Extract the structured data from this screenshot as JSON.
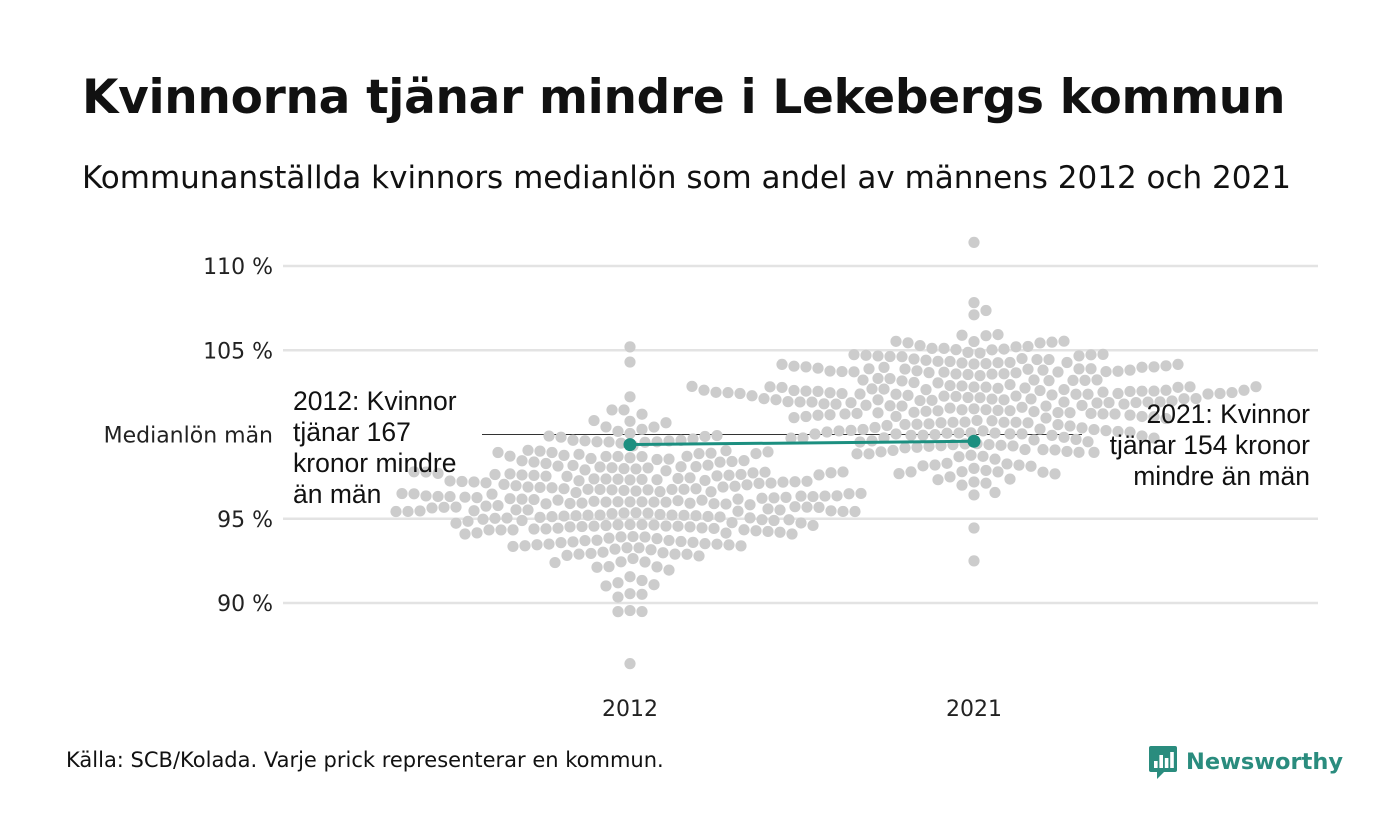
{
  "header": {
    "title": "Kvinnorna tjänar mindre i Lekebergs kommun",
    "subtitle": "Kommunanställda kvinnors medianlön som andel av männens 2012 och 2021"
  },
  "footer": {
    "source": "Källa: SCB/Kolada. Varje prick representerar en kommun.",
    "brand": "Newsworthy",
    "brand_icon": "bar-chart-logo-icon"
  },
  "colors": {
    "dots": "#cccccc",
    "highlight": "#1c8f80",
    "gridline": "#e3e3e3",
    "reference_line": "#333333"
  },
  "chart_data": {
    "type": "scatter",
    "subtype": "beeswarm",
    "title": "Kvinnorna tjänar mindre i Lekebergs kommun",
    "subtitle": "Kommunanställda kvinnors medianlön som andel av männens 2012 och 2021",
    "categories": [
      "2012",
      "2021"
    ],
    "y_ticks": [
      {
        "value": 90,
        "label": "90 %"
      },
      {
        "value": 95,
        "label": "95 %"
      },
      {
        "value": 105,
        "label": "105 %"
      },
      {
        "value": 110,
        "label": "110 %"
      }
    ],
    "ylim": [
      86,
      111.5
    ],
    "grid": true,
    "reference_line": {
      "value": 100,
      "label": "Medianlön män"
    },
    "distribution": [
      {
        "category": "2012",
        "n_points": 290,
        "median": 96,
        "spread": 2.3,
        "min": 86.4,
        "max": 105.2
      },
      {
        "category": "2021",
        "n_points": 290,
        "median": 101.5,
        "spread": 2.2,
        "min": 92.5,
        "max": 111.4
      }
    ],
    "highlight": {
      "name": "Lekebergs kommun",
      "points": [
        {
          "x": "2012",
          "y": 99.4
        },
        {
          "x": "2021",
          "y": 99.6
        }
      ]
    },
    "annotations": [
      {
        "category": "2012",
        "lines": [
          "2012: Kvinnor",
          "tjänar 167",
          "kronor mindre",
          "än män"
        ]
      },
      {
        "category": "2021",
        "lines": [
          "2021: Kvinnor",
          "tjänar 154 kronor",
          "mindre än män"
        ]
      }
    ]
  }
}
